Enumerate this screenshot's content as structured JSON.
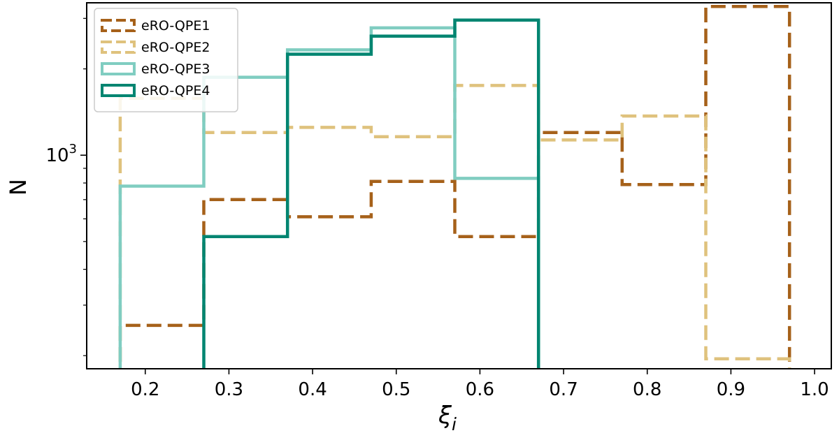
{
  "chart_data": {
    "type": "histogram",
    "y_scale": "log",
    "xlabel": "ξ",
    "xlabel_subscript": "i",
    "ylabel": "N",
    "xlim": [
      0.13,
      1.02
    ],
    "ylim": [
      180,
      3400
    ],
    "x_ticks": [
      0.2,
      0.3,
      0.4,
      0.5,
      0.6,
      0.7,
      0.8,
      0.9,
      1.0
    ],
    "x_tick_labels": [
      "0.2",
      "0.3",
      "0.4",
      "0.5",
      "0.6",
      "0.7",
      "0.8",
      "0.9",
      "1.0"
    ],
    "y_major_tick_value": 1000,
    "y_major_tick_base": "10",
    "y_major_tick_exponent": "3",
    "y_minor_ticks": [
      200,
      300,
      400,
      500,
      600,
      700,
      800,
      900,
      2000,
      3000
    ],
    "legend_position": "top-left",
    "series": [
      {
        "name": "eRO-QPE1",
        "color": "#A6611A",
        "dashed": true,
        "edges": [
          0.17,
          0.27,
          0.37,
          0.47,
          0.57,
          0.67,
          0.77,
          0.87,
          0.97
        ],
        "counts": [
          255,
          700,
          610,
          810,
          520,
          1200,
          790,
          3300
        ]
      },
      {
        "name": "eRO-QPE2",
        "color": "#DFC27D",
        "dashed": true,
        "edges": [
          0.17,
          0.27,
          0.37,
          0.47,
          0.57,
          0.67,
          0.77,
          0.87,
          0.97
        ],
        "counts": [
          1580,
          1200,
          1250,
          1160,
          1750,
          1130,
          1370,
          195
        ]
      },
      {
        "name": "eRO-QPE3",
        "color": "#80CDC1",
        "dashed": false,
        "edges": [
          0.17,
          0.27,
          0.37,
          0.47,
          0.57,
          0.67
        ],
        "counts": [
          780,
          1870,
          2330,
          2780,
          830
        ]
      },
      {
        "name": "eRO-QPE4",
        "color": "#018571",
        "dashed": false,
        "edges": [
          0.27,
          0.37,
          0.47,
          0.57,
          0.67
        ],
        "counts": [
          520,
          2250,
          2600,
          2960
        ]
      }
    ]
  }
}
